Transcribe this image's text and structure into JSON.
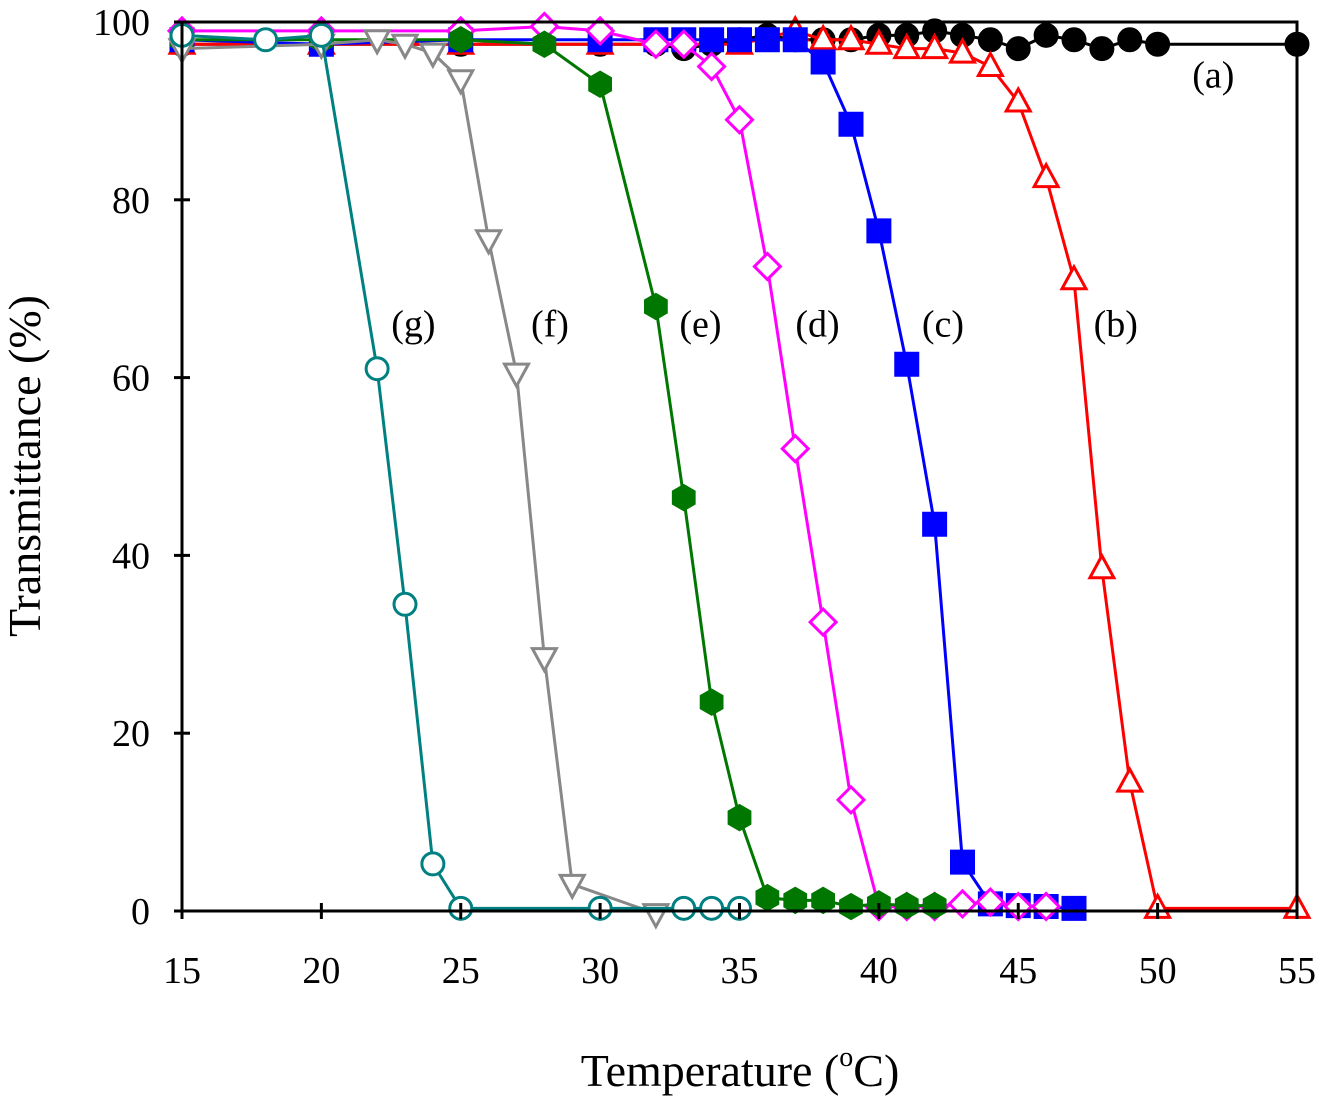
{
  "chart_data": {
    "type": "line",
    "title": "",
    "xlabel": "Temperature (",
    "xlabel_sup": "o",
    "xlabel_suffix": "C)",
    "ylabel": "Transmittance (%)",
    "xlim": [
      15,
      55
    ],
    "ylim": [
      0,
      100
    ],
    "xticks": [
      "15",
      "20",
      "25",
      "30",
      "35",
      "40",
      "45",
      "50",
      "55"
    ],
    "yticks": [
      "0",
      "20",
      "40",
      "60",
      "80",
      "100"
    ],
    "grid": false,
    "series": [
      {
        "name": "(a)",
        "color": "#000000",
        "marker": "circle-filled",
        "label_pos": [
          52,
          94
        ],
        "x": [
          15,
          20,
          25,
          30,
          32,
          33,
          34,
          35,
          36,
          37,
          38,
          39,
          40,
          41,
          42,
          43,
          44,
          45,
          46,
          47,
          48,
          49,
          50,
          55
        ],
        "y": [
          97.5,
          97.5,
          97.5,
          97.5,
          97.5,
          97,
          97.5,
          98,
          98.5,
          98,
          98,
          98,
          98.5,
          98.5,
          99,
          98.5,
          98,
          97,
          98.5,
          98,
          97,
          98,
          97.5,
          97.5
        ]
      },
      {
        "name": "(b)",
        "color": "#ff0000",
        "marker": "triangle-up-open",
        "label_pos": [
          48.5,
          66
        ],
        "x": [
          15,
          20,
          25,
          30,
          35,
          37,
          38,
          39,
          40,
          41,
          42,
          43,
          44,
          45,
          46,
          47,
          48,
          49,
          50,
          55
        ],
        "y": [
          97.5,
          97.5,
          97.5,
          97.5,
          97.5,
          99,
          98,
          98,
          97.5,
          97,
          97,
          96.5,
          95,
          91,
          82.5,
          71,
          38.5,
          14.5,
          0.3,
          0.3
        ]
      },
      {
        "name": "(c)",
        "color": "#0000ff",
        "marker": "square-filled",
        "label_pos": [
          42.3,
          66
        ],
        "x": [
          15,
          20,
          25,
          30,
          32,
          33,
          34,
          35,
          36,
          37,
          38,
          39,
          40,
          41,
          42,
          43,
          44,
          45,
          46,
          47
        ],
        "y": [
          98,
          97.5,
          98,
          98,
          98,
          98,
          98,
          98,
          98,
          98,
          95.5,
          88.5,
          76.5,
          61.5,
          43.5,
          5.5,
          0.8,
          0.6,
          0.5,
          0.3
        ]
      },
      {
        "name": "(d)",
        "color": "#ff00ff",
        "marker": "diamond-open",
        "label_pos": [
          37.8,
          66
        ],
        "x": [
          15,
          20,
          25,
          28,
          30,
          32,
          33,
          34,
          35,
          36,
          37,
          38,
          39,
          40,
          41,
          42,
          43,
          44,
          45,
          46
        ],
        "y": [
          99,
          99,
          99,
          99.5,
          99,
          97.5,
          97.5,
          95,
          89,
          72.5,
          52,
          32.5,
          12.5,
          0.5,
          0.5,
          0.5,
          0.8,
          1,
          0.5,
          0.5
        ]
      },
      {
        "name": "(e)",
        "color": "#007700",
        "marker": "hexagon-filled",
        "label_pos": [
          33.6,
          66
        ],
        "x": [
          15,
          20,
          25,
          28,
          30,
          32,
          33,
          34,
          35,
          36,
          37,
          38,
          39,
          40,
          41,
          42
        ],
        "y": [
          98,
          98,
          98,
          97.5,
          93,
          68,
          46.5,
          23.5,
          10.5,
          1.5,
          1.2,
          1.2,
          0.5,
          0.8,
          0.6,
          0.6
        ]
      },
      {
        "name": "(f)",
        "color": "#888888",
        "marker": "triangle-down-open",
        "label_pos": [
          28.2,
          66
        ],
        "x": [
          15,
          20,
          22,
          23,
          24,
          25,
          26,
          27,
          28,
          29,
          32
        ],
        "y": [
          97,
          97.5,
          98,
          97.5,
          96.5,
          93.5,
          75.5,
          60.5,
          28.5,
          3,
          -0.3
        ]
      },
      {
        "name": "(g)",
        "color": "#008080",
        "marker": "circle-open",
        "label_pos": [
          23.3,
          66
        ],
        "x": [
          15,
          18,
          20,
          22,
          23,
          24,
          25,
          30,
          33,
          34,
          35
        ],
        "y": [
          98.5,
          98,
          98.5,
          61,
          34.5,
          5.3,
          0.3,
          0.3,
          0.3,
          0.3,
          0.3
        ]
      }
    ]
  }
}
